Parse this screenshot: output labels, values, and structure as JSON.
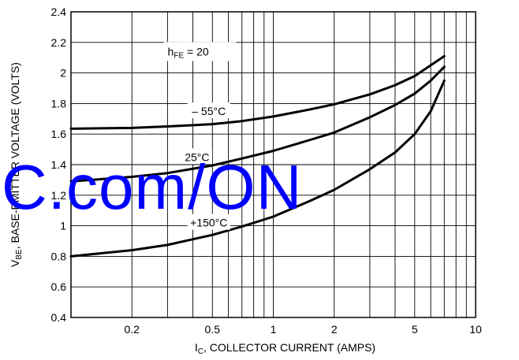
{
  "chart_data": {
    "type": "line",
    "title": "",
    "xlabel": {
      "main": "I",
      "sub": "C",
      "rest": ", COLLECTOR CURRENT (AMPS)"
    },
    "ylabel": {
      "main": "V",
      "sub": "BE",
      "rest": ", BASE-EMITTER VOLTAGE (VOLTS)"
    },
    "xscale": "log",
    "xlim": [
      0.1,
      10
    ],
    "ylim": [
      0.4,
      2.4
    ],
    "grid": true,
    "x_tick_labels": [
      {
        "value": 0.2,
        "label": "0.2"
      },
      {
        "value": 0.5,
        "label": "0.5"
      },
      {
        "value": 1,
        "label": "1"
      },
      {
        "value": 2,
        "label": "2"
      },
      {
        "value": 5,
        "label": "5"
      },
      {
        "value": 10,
        "label": "10"
      }
    ],
    "y_tick_labels": [
      {
        "value": 0.4,
        "label": "0.4"
      },
      {
        "value": 0.6,
        "label": "0.6"
      },
      {
        "value": 0.8,
        "label": "0.8"
      },
      {
        "value": 1.0,
        "label": "1"
      },
      {
        "value": 1.2,
        "label": "1.2"
      },
      {
        "value": 1.4,
        "label": "1.4"
      },
      {
        "value": 1.6,
        "label": "1.6"
      },
      {
        "value": 1.8,
        "label": "1.8"
      },
      {
        "value": 2.0,
        "label": "2"
      },
      {
        "value": 2.2,
        "label": "2.2"
      },
      {
        "value": 2.4,
        "label": "2.4"
      }
    ],
    "condition": {
      "main": "h",
      "sub": "FE",
      "rest": " = 20"
    },
    "series": [
      {
        "name": "– 55°C",
        "x": [
          0.1,
          0.2,
          0.3,
          0.5,
          0.7,
          1.0,
          1.5,
          2.0,
          3.0,
          4.0,
          5.0,
          6.0,
          7.0
        ],
        "y": [
          1.635,
          1.64,
          1.65,
          1.665,
          1.685,
          1.715,
          1.76,
          1.795,
          1.86,
          1.92,
          1.98,
          2.05,
          2.11
        ]
      },
      {
        "name": "25°C",
        "x": [
          0.1,
          0.2,
          0.3,
          0.5,
          0.7,
          1.0,
          1.5,
          2.0,
          3.0,
          4.0,
          5.0,
          6.0,
          7.0
        ],
        "y": [
          1.29,
          1.32,
          1.345,
          1.395,
          1.44,
          1.49,
          1.56,
          1.61,
          1.71,
          1.79,
          1.865,
          1.95,
          2.04
        ]
      },
      {
        "name": "+150°C",
        "x": [
          0.1,
          0.2,
          0.3,
          0.5,
          0.7,
          1.0,
          1.5,
          2.0,
          3.0,
          4.0,
          5.0,
          6.0,
          7.0
        ],
        "y": [
          0.8,
          0.84,
          0.875,
          0.94,
          0.995,
          1.06,
          1.16,
          1.235,
          1.37,
          1.48,
          1.6,
          1.75,
          1.95
        ]
      }
    ],
    "watermark": "C.com/ON"
  }
}
